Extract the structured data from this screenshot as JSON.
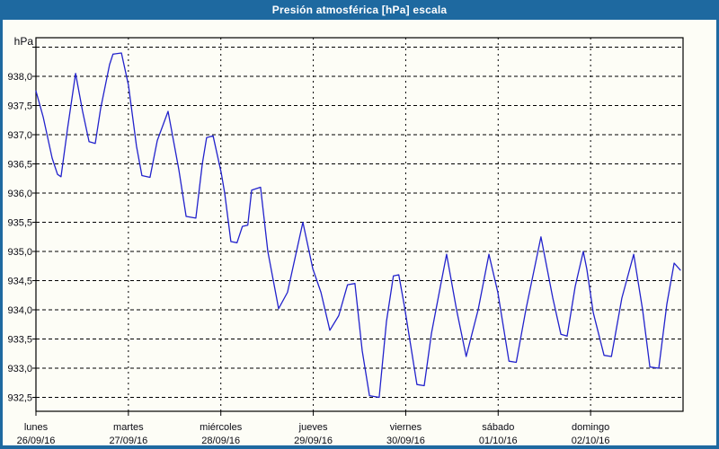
{
  "window": {
    "title": "Presión atmosférica [hPa] escala"
  },
  "colors": {
    "titlebar_bg": "#1e69a0",
    "titlebar_text": "#ffffff",
    "frame_border": "#1e69a0",
    "background": "#fdfdf6",
    "plot_border": "#000000",
    "gridline": "#000000",
    "axis_text": "#0a0a12",
    "line": "#2222cc"
  },
  "chart_data": {
    "type": "line",
    "title": "Presión atmosférica [hPa] escala",
    "y_unit_label": "hPa",
    "ylim": [
      932.25,
      938.7
    ],
    "grid": "dashed",
    "legend_position": "none",
    "yticks": [
      {
        "value": 938.5,
        "label": ""
      },
      {
        "value": 938.0,
        "label": "938,0"
      },
      {
        "value": 937.5,
        "label": "937,5"
      },
      {
        "value": 937.0,
        "label": "937,0"
      },
      {
        "value": 936.5,
        "label": "936,5"
      },
      {
        "value": 936.0,
        "label": "936,0"
      },
      {
        "value": 935.5,
        "label": "935,5"
      },
      {
        "value": 935.0,
        "label": "935,0"
      },
      {
        "value": 934.5,
        "label": "934,5"
      },
      {
        "value": 934.0,
        "label": "934,0"
      },
      {
        "value": 933.5,
        "label": "933,5"
      },
      {
        "value": 933.0,
        "label": "933,0"
      },
      {
        "value": 932.5,
        "label": "932,5"
      }
    ],
    "x_days": [
      {
        "name": "lunes",
        "date": "26/09/16"
      },
      {
        "name": "martes",
        "date": "27/09/16"
      },
      {
        "name": "miércoles",
        "date": "28/09/16"
      },
      {
        "name": "jueves",
        "date": "29/09/16"
      },
      {
        "name": "viernes",
        "date": "30/09/16"
      },
      {
        "name": "sábado",
        "date": "01/10/16"
      },
      {
        "name": "domingo",
        "date": "02/10/16"
      }
    ],
    "x_range_hours": [
      0,
      168
    ],
    "series": [
      {
        "name": "Presión atmosférica",
        "color": "#2222cc",
        "points_hours_hpa": [
          [
            0,
            937.75
          ],
          [
            1.9,
            937.3
          ],
          [
            4.2,
            936.6
          ],
          [
            5.6,
            936.32
          ],
          [
            6.5,
            936.28
          ],
          [
            8.2,
            937.1
          ],
          [
            10.3,
            938.05
          ],
          [
            12.1,
            937.4
          ],
          [
            13.8,
            936.88
          ],
          [
            15.4,
            936.85
          ],
          [
            16.8,
            937.45
          ],
          [
            19.1,
            938.2
          ],
          [
            20.0,
            938.38
          ],
          [
            22.2,
            938.4
          ],
          [
            24.0,
            937.85
          ],
          [
            26.1,
            936.8
          ],
          [
            27.5,
            936.3
          ],
          [
            29.6,
            936.27
          ],
          [
            31.5,
            936.9
          ],
          [
            34.3,
            937.4
          ],
          [
            37.1,
            936.4
          ],
          [
            39.0,
            935.6
          ],
          [
            41.5,
            935.57
          ],
          [
            43.2,
            936.5
          ],
          [
            44.3,
            936.95
          ],
          [
            46.0,
            936.98
          ],
          [
            48.1,
            936.35
          ],
          [
            49.0,
            936.0
          ],
          [
            50.6,
            935.17
          ],
          [
            52.2,
            935.15
          ],
          [
            53.6,
            935.43
          ],
          [
            55.0,
            935.45
          ],
          [
            56.0,
            936.05
          ],
          [
            58.3,
            936.1
          ],
          [
            60.2,
            935.0
          ],
          [
            63.0,
            934.02
          ],
          [
            65.3,
            934.3
          ],
          [
            69.3,
            935.5
          ],
          [
            71.9,
            934.7
          ],
          [
            74.0,
            934.3
          ],
          [
            76.3,
            933.65
          ],
          [
            78.6,
            933.9
          ],
          [
            80.9,
            934.43
          ],
          [
            82.8,
            934.45
          ],
          [
            84.7,
            933.3
          ],
          [
            86.6,
            932.53
          ],
          [
            89.1,
            932.5
          ],
          [
            91.0,
            933.8
          ],
          [
            92.8,
            934.58
          ],
          [
            94.2,
            934.6
          ],
          [
            95.7,
            934.05
          ],
          [
            97.5,
            933.3
          ],
          [
            98.9,
            932.72
          ],
          [
            100.8,
            932.7
          ],
          [
            102.7,
            933.6
          ],
          [
            105.0,
            934.4
          ],
          [
            106.6,
            934.95
          ],
          [
            109.2,
            934.0
          ],
          [
            111.7,
            933.2
          ],
          [
            114.8,
            934.0
          ],
          [
            117.6,
            934.95
          ],
          [
            119.9,
            934.3
          ],
          [
            122.8,
            933.12
          ],
          [
            124.7,
            933.1
          ],
          [
            127.2,
            934.0
          ],
          [
            131.1,
            935.25
          ],
          [
            134.2,
            934.2
          ],
          [
            136.3,
            933.58
          ],
          [
            137.9,
            933.55
          ],
          [
            140.0,
            934.4
          ],
          [
            142.1,
            935.0
          ],
          [
            143.0,
            934.7
          ],
          [
            144.7,
            933.95
          ],
          [
            147.5,
            933.22
          ],
          [
            149.4,
            933.2
          ],
          [
            152.1,
            934.2
          ],
          [
            155.2,
            934.95
          ],
          [
            157.5,
            934.0
          ],
          [
            159.4,
            933.02
          ],
          [
            161.7,
            933.0
          ],
          [
            163.8,
            934.1
          ],
          [
            165.7,
            934.8
          ],
          [
            167.3,
            934.68
          ]
        ]
      }
    ]
  }
}
